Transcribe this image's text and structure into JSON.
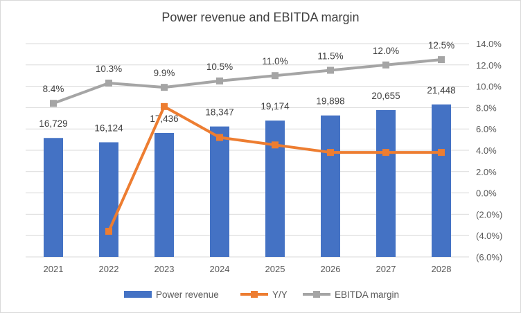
{
  "chart_data": {
    "type": "bar",
    "title": "Power revenue and EBITDA margin",
    "categories": [
      "2021",
      "2022",
      "2023",
      "2024",
      "2025",
      "2026",
      "2027",
      "2028"
    ],
    "series": [
      {
        "name": "Power revenue",
        "type": "bar",
        "axis": "left",
        "values": [
          16729,
          16124,
          17436,
          18347,
          19174,
          19898,
          20655,
          21448
        ],
        "labels": [
          "16,729",
          "16,124",
          "17,436",
          "18,347",
          "19,174",
          "19,898",
          "20,655",
          "21,448"
        ],
        "color": "#4472c4"
      },
      {
        "name": "Y/Y",
        "type": "line",
        "axis": "right",
        "values": [
          null,
          -3.6,
          8.1,
          5.2,
          4.5,
          3.8,
          3.8,
          3.8
        ],
        "color": "#ed7d31"
      },
      {
        "name": "EBITDA margin",
        "type": "line",
        "axis": "right",
        "values": [
          8.4,
          10.3,
          9.9,
          10.5,
          11.0,
          11.5,
          12.0,
          12.5
        ],
        "labels": [
          "8.4%",
          "10.3%",
          "9.9%",
          "10.5%",
          "11.0%",
          "11.5%",
          "12.0%",
          "12.5%"
        ],
        "color": "#a5a5a5"
      }
    ],
    "right_axis": {
      "ylim": [
        -6,
        14
      ],
      "ticks": [
        14,
        12,
        10,
        8,
        6,
        4,
        2,
        0,
        -2,
        -4,
        -6
      ],
      "tick_labels": [
        "14.0%",
        "12.0%",
        "10.0%",
        "8.0%",
        "6.0%",
        "4.0%",
        "2.0%",
        "0.0%",
        "(2.0%)",
        "(4.0%)",
        "(6.0%)"
      ]
    },
    "left_axis": {
      "ylim": [
        0,
        30000
      ],
      "visible": false
    },
    "grid": true,
    "legend_position": "bottom"
  }
}
